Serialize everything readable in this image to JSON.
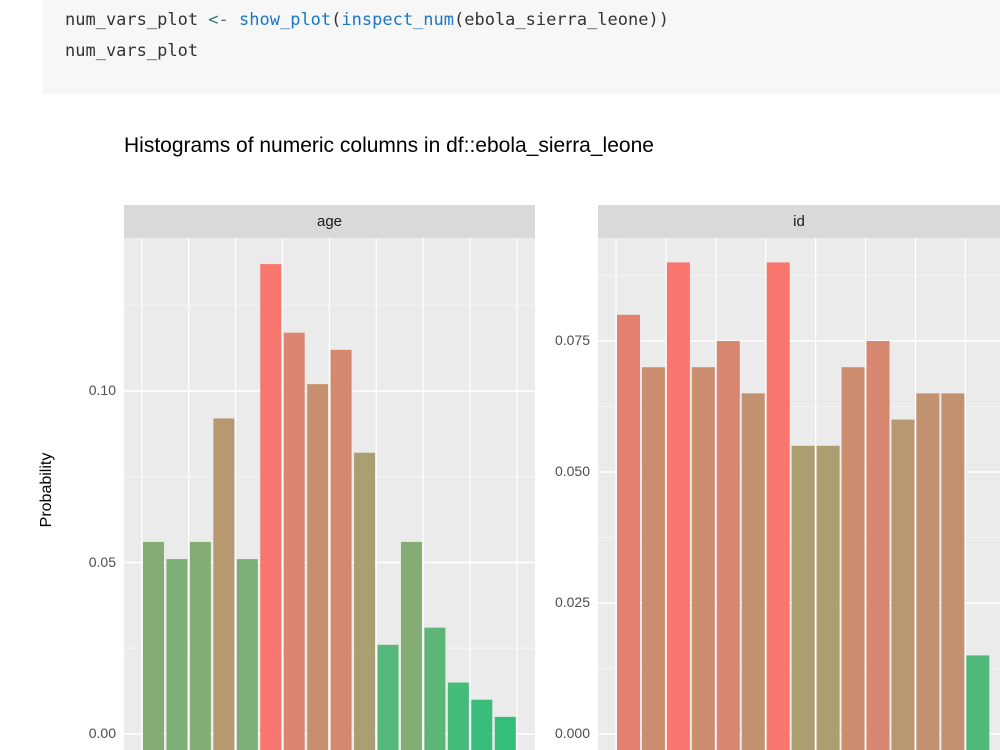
{
  "code": {
    "line1": {
      "var": "num_vars_plot ",
      "assign": "<-",
      "space": " ",
      "fn1": "show_plot",
      "p1": "(",
      "fn2": "inspect_num",
      "rest": "(ebola_sierra_leone))"
    },
    "line2": "num_vars_plot"
  },
  "colors": {
    "high": "#f8766d",
    "mid": "#96a972",
    "low": "#2dbf7d"
  },
  "chart_data": {
    "type": "bar",
    "title": "Histograms of numeric columns in df::ebola_sierra_leone",
    "ylabel": "Probability",
    "xlabel": "",
    "grid": true,
    "facets": [
      {
        "name": "age",
        "ylim": [
          0,
          0.138
        ],
        "yticks": [
          0,
          0.05,
          0.1
        ],
        "yticklabels": [
          "0.00",
          "0.05",
          "0.10"
        ],
        "values": [
          0.056,
          0.051,
          0.056,
          0.092,
          0.051,
          0.137,
          0.117,
          0.102,
          0.112,
          0.082,
          0.026,
          0.056,
          0.031,
          0.015,
          0.01,
          0.005
        ]
      },
      {
        "name": "id",
        "ylim": [
          0,
          0.09
        ],
        "yticks": [
          0,
          0.025,
          0.05,
          0.075
        ],
        "yticklabels": [
          "0.000",
          "0.025",
          "0.050",
          "0.075"
        ],
        "values": [
          0.08,
          0.07,
          0.09,
          0.07,
          0.075,
          0.065,
          0.09,
          0.055,
          0.055,
          0.07,
          0.075,
          0.06,
          0.065,
          0.065,
          0.015
        ]
      }
    ]
  }
}
